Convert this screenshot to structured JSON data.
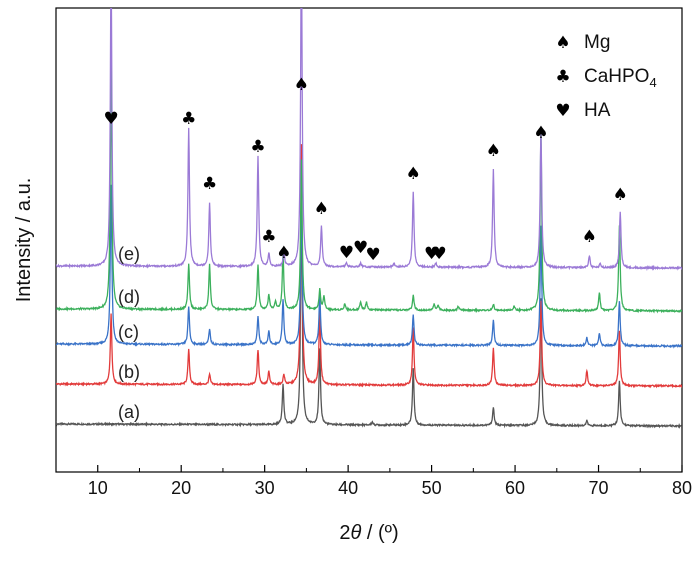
{
  "chart_data": {
    "type": "line",
    "title": "",
    "xlabel_prefix": "2",
    "xlabel_symbol": "θ",
    "xlabel_suffix": " / (º)",
    "ylabel": "Intensity / a.u.",
    "xlim": [
      5,
      80
    ],
    "xticks": [
      "10",
      "20",
      "30",
      "40",
      "50",
      "60",
      "70",
      "80"
    ],
    "y_ticks_shown": false,
    "grid": false,
    "legend_position": "top-right",
    "legend": [
      {
        "glyph": "♠",
        "label": "Mg",
        "sub": ""
      },
      {
        "glyph": "♣",
        "label": "CaHPO",
        "sub": "4"
      },
      {
        "glyph": "♥",
        "label": "HA",
        "sub": ""
      }
    ],
    "series": [
      {
        "name": "(a)",
        "color": "#555555",
        "baseline": 0,
        "peaks": [
          [
            32.2,
            40
          ],
          [
            34.4,
            235
          ],
          [
            36.6,
            75
          ],
          [
            42.9,
            3
          ],
          [
            47.8,
            57
          ],
          [
            57.4,
            18
          ],
          [
            63.1,
            128
          ],
          [
            68.6,
            5
          ],
          [
            72.5,
            45
          ]
        ]
      },
      {
        "name": "(b)",
        "color": "#e23b3b",
        "baseline": 40,
        "peaks": [
          [
            11.6,
            70
          ],
          [
            20.9,
            35
          ],
          [
            23.4,
            10
          ],
          [
            29.2,
            35
          ],
          [
            30.5,
            13
          ],
          [
            32.3,
            10
          ],
          [
            34.4,
            240
          ],
          [
            36.6,
            75
          ],
          [
            47.8,
            57
          ],
          [
            57.4,
            38
          ],
          [
            63.1,
            85
          ],
          [
            68.6,
            15
          ],
          [
            72.5,
            55
          ]
        ]
      },
      {
        "name": "(c)",
        "color": "#3a73c8",
        "baseline": 80,
        "peaks": [
          [
            11.6,
            160
          ],
          [
            20.9,
            38
          ],
          [
            23.4,
            15
          ],
          [
            29.2,
            28
          ],
          [
            30.5,
            13
          ],
          [
            32.2,
            45
          ],
          [
            34.4,
            150
          ],
          [
            36.6,
            50
          ],
          [
            47.8,
            30
          ],
          [
            57.4,
            25
          ],
          [
            63.1,
            120
          ],
          [
            68.6,
            8
          ],
          [
            70.1,
            12
          ],
          [
            72.5,
            45
          ]
        ]
      },
      {
        "name": "(d)",
        "color": "#3cb05c",
        "baseline": 115,
        "peaks": [
          [
            11.6,
            250
          ],
          [
            20.9,
            45
          ],
          [
            23.4,
            45
          ],
          [
            29.2,
            45
          ],
          [
            30.5,
            15
          ],
          [
            31.3,
            8
          ],
          [
            32.2,
            55
          ],
          [
            34.4,
            150
          ],
          [
            36.6,
            20
          ],
          [
            37.1,
            14
          ],
          [
            39.6,
            6
          ],
          [
            41.5,
            8
          ],
          [
            42.2,
            8
          ],
          [
            47.8,
            15
          ],
          [
            50.3,
            6
          ],
          [
            50.8,
            5
          ],
          [
            53.2,
            4
          ],
          [
            57.4,
            6
          ],
          [
            59.9,
            4
          ],
          [
            63.1,
            180
          ],
          [
            70.1,
            18
          ],
          [
            72.5,
            85
          ]
        ]
      },
      {
        "name": "(e)",
        "color": "#9b7ad6",
        "baseline": 158,
        "peaks": [
          [
            11.6,
            300
          ],
          [
            20.9,
            138
          ],
          [
            23.4,
            63
          ],
          [
            29.2,
            111
          ],
          [
            30.5,
            13
          ],
          [
            32.3,
            14
          ],
          [
            34.4,
            320
          ],
          [
            36.8,
            40
          ],
          [
            39.8,
            4
          ],
          [
            41.5,
            4
          ],
          [
            45.5,
            3
          ],
          [
            47.8,
            75
          ],
          [
            50.5,
            4
          ],
          [
            57.4,
            98
          ],
          [
            63.1,
            138
          ],
          [
            68.9,
            12
          ],
          [
            70.2,
            4
          ],
          [
            72.6,
            56
          ]
        ]
      }
    ],
    "markers": [
      {
        "symbol": "♥",
        "x": 11.6,
        "y": 300
      },
      {
        "symbol": "♣",
        "x": 20.9,
        "y": 300
      },
      {
        "symbol": "♣",
        "x": 23.4,
        "y": 235
      },
      {
        "symbol": "♣",
        "x": 29.2,
        "y": 272
      },
      {
        "symbol": "♣",
        "x": 30.5,
        "y": 182
      },
      {
        "symbol": "♠",
        "x": 32.3,
        "y": 166
      },
      {
        "symbol": "♠",
        "x": 34.4,
        "y": 334
      },
      {
        "symbol": "♠",
        "x": 36.8,
        "y": 210
      },
      {
        "symbol": "♥",
        "x": 39.8,
        "y": 166
      },
      {
        "symbol": "♥",
        "x": 41.5,
        "y": 171
      },
      {
        "symbol": "♥",
        "x": 43.0,
        "y": 164
      },
      {
        "symbol": "♠",
        "x": 47.8,
        "y": 245
      },
      {
        "symbol": "♥",
        "x": 50.0,
        "y": 165
      },
      {
        "symbol": "♥",
        "x": 50.9,
        "y": 165
      },
      {
        "symbol": "♠",
        "x": 57.4,
        "y": 268
      },
      {
        "symbol": "♠",
        "x": 63.1,
        "y": 286
      },
      {
        "symbol": "♠",
        "x": 68.9,
        "y": 182
      },
      {
        "symbol": "♠",
        "x": 72.6,
        "y": 224
      }
    ]
  }
}
